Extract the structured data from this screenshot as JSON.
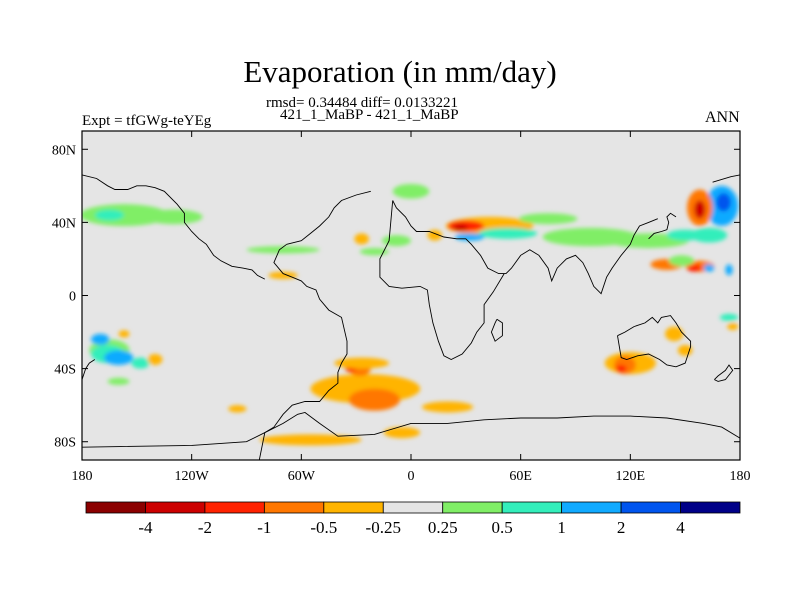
{
  "chart_data": {
    "type": "heatmap",
    "title": "Evaporation (in mm/day)",
    "stats_text": "rmsd= 0.34484 diff= 0.0133221",
    "runs_text": "421_1_MaBP - 421_1_MaBP",
    "left_label": "Expt = tfGWg-teYEg",
    "right_label": "ANN",
    "xlim": [
      -180,
      180
    ],
    "ylim": [
      -90,
      90
    ],
    "x_ticks": [
      {
        "value": -180,
        "label": "180"
      },
      {
        "value": -120,
        "label": "120W"
      },
      {
        "value": -60,
        "label": "60W"
      },
      {
        "value": 0,
        "label": "0"
      },
      {
        "value": 60,
        "label": "60E"
      },
      {
        "value": 120,
        "label": "120E"
      },
      {
        "value": 180,
        "label": "180"
      }
    ],
    "y_ticks": [
      {
        "value": 80,
        "label": "80N"
      },
      {
        "value": 40,
        "label": "40N"
      },
      {
        "value": 0,
        "label": "0"
      },
      {
        "value": -40,
        "label": "40S"
      },
      {
        "value": -80,
        "label": "80S"
      }
    ],
    "colorbar_levels": [
      "-4",
      "-2",
      "-1",
      "-0.5",
      "-0.25",
      "0.25",
      "0.5",
      "1",
      "2",
      "4"
    ],
    "colorbar_colors": [
      "#8b0000",
      "#cc0000",
      "#ff2200",
      "#ff7700",
      "#ffb400",
      "#e5e5e5",
      "#80ee66",
      "#33eebb",
      "#11aaff",
      "#0055ee",
      "#000088"
    ],
    "features": [
      {
        "cat": 6,
        "lon": -157,
        "lat": 44,
        "rlon": 24,
        "rlat": 6
      },
      {
        "cat": 6,
        "lon": -130,
        "lat": 43,
        "rlon": 16,
        "rlat": 4
      },
      {
        "cat": 7,
        "lon": -165,
        "lat": 44,
        "rlon": 8,
        "rlat": 3
      },
      {
        "cat": 6,
        "lon": 98,
        "lat": 32,
        "rlon": 26,
        "rlat": 5
      },
      {
        "cat": 6,
        "lon": 130,
        "lat": 30,
        "rlon": 22,
        "rlat": 4
      },
      {
        "cat": 7,
        "lon": 150,
        "lat": 33,
        "rlon": 10,
        "rlat": 3
      },
      {
        "cat": 8,
        "lon": 170,
        "lat": 49,
        "rlon": 9,
        "rlat": 11
      },
      {
        "cat": 9,
        "lon": 171,
        "lat": 51,
        "rlon": 4,
        "rlat": 5
      },
      {
        "cat": 3,
        "lon": 158,
        "lat": 48,
        "rlon": 7,
        "rlat": 10
      },
      {
        "cat": 1,
        "lon": 158,
        "lat": 47,
        "rlon": 3,
        "rlat": 5
      },
      {
        "cat": 7,
        "lon": 163,
        "lat": 33,
        "rlon": 10,
        "rlat": 4
      },
      {
        "cat": 3,
        "lon": 140,
        "lat": 17,
        "rlon": 9,
        "rlat": 3
      },
      {
        "cat": 3,
        "lon": 158,
        "lat": 16,
        "rlon": 8,
        "rlat": 3
      },
      {
        "cat": 2,
        "lon": 155,
        "lat": 15,
        "rlon": 4,
        "rlat": 2
      },
      {
        "cat": 8,
        "lon": 163,
        "lat": 15,
        "rlon": 3,
        "rlat": 2
      },
      {
        "cat": 6,
        "lon": 148,
        "lat": 19,
        "rlon": 7,
        "rlat": 3
      },
      {
        "cat": 8,
        "lon": 174,
        "lat": 14,
        "rlon": 2,
        "rlat": 3
      },
      {
        "cat": 4,
        "lon": 43,
        "lat": 38,
        "rlon": 24,
        "rlat": 5
      },
      {
        "cat": 2,
        "lon": 30,
        "lat": 38,
        "rlon": 10,
        "rlat": 3
      },
      {
        "cat": 1,
        "lon": 27,
        "lat": 37,
        "rlon": 4,
        "rlat": 2
      },
      {
        "cat": 7,
        "lon": 53,
        "lat": 34,
        "rlon": 16,
        "rlat": 3
      },
      {
        "cat": 6,
        "lon": 75,
        "lat": 42,
        "rlon": 16,
        "rlat": 3
      },
      {
        "cat": 8,
        "lon": 32,
        "lat": 32,
        "rlon": 8,
        "rlat": 2
      },
      {
        "cat": 4,
        "lon": 13,
        "lat": 33,
        "rlon": 4,
        "rlat": 3
      },
      {
        "cat": 4,
        "lon": -27,
        "lat": 31,
        "rlon": 4,
        "rlat": 3
      },
      {
        "cat": 6,
        "lon": -8,
        "lat": 30,
        "rlon": 8,
        "rlat": 3
      },
      {
        "cat": 6,
        "lon": 0,
        "lat": 57,
        "rlon": 10,
        "rlat": 4
      },
      {
        "cat": 6,
        "lon": -70,
        "lat": 25,
        "rlon": 20,
        "rlat": 2
      },
      {
        "cat": 4,
        "lon": -70,
        "lat": 11,
        "rlon": 8,
        "rlat": 2
      },
      {
        "cat": 6,
        "lon": -20,
        "lat": 24,
        "rlon": 8,
        "rlat": 2
      },
      {
        "cat": 6,
        "lon": -165,
        "lat": -30,
        "rlon": 11,
        "rlat": 6
      },
      {
        "cat": 7,
        "lon": -166,
        "lat": -32,
        "rlon": 9,
        "rlat": 5
      },
      {
        "cat": 8,
        "lon": -160,
        "lat": -34,
        "rlon": 8,
        "rlat": 4
      },
      {
        "cat": 8,
        "lon": -170,
        "lat": -24,
        "rlon": 5,
        "rlat": 3
      },
      {
        "cat": 7,
        "lon": -148,
        "lat": -37,
        "rlon": 5,
        "rlat": 3
      },
      {
        "cat": 4,
        "lon": -157,
        "lat": -21,
        "rlon": 3,
        "rlat": 2
      },
      {
        "cat": 4,
        "lon": -140,
        "lat": -35,
        "rlon": 4,
        "rlat": 3
      },
      {
        "cat": 6,
        "lon": -160,
        "lat": -47,
        "rlon": 6,
        "rlat": 2
      },
      {
        "cat": 4,
        "lon": -25,
        "lat": -51,
        "rlon": 30,
        "rlat": 8
      },
      {
        "cat": 3,
        "lon": -20,
        "lat": -57,
        "rlon": 14,
        "rlat": 6
      },
      {
        "cat": 3,
        "lon": -28,
        "lat": -40,
        "rlon": 6,
        "rlat": 4
      },
      {
        "cat": 2,
        "lon": -33,
        "lat": -40,
        "rlon": 3,
        "rlat": 2
      },
      {
        "cat": 4,
        "lon": -27,
        "lat": -37,
        "rlon": 15,
        "rlat": 3
      },
      {
        "cat": 4,
        "lon": -55,
        "lat": -79,
        "rlon": 28,
        "rlat": 3
      },
      {
        "cat": 4,
        "lon": -5,
        "lat": -75,
        "rlon": 10,
        "rlat": 3
      },
      {
        "cat": 4,
        "lon": 20,
        "lat": -61,
        "rlon": 14,
        "rlat": 3
      },
      {
        "cat": 4,
        "lon": -95,
        "lat": -62,
        "rlon": 5,
        "rlat": 2
      },
      {
        "cat": 4,
        "lon": 120,
        "lat": -37,
        "rlon": 14,
        "rlat": 6
      },
      {
        "cat": 3,
        "lon": 117,
        "lat": -38,
        "rlon": 6,
        "rlat": 5
      },
      {
        "cat": 2,
        "lon": 115,
        "lat": -40,
        "rlon": 3,
        "rlat": 2
      },
      {
        "cat": 4,
        "lon": 144,
        "lat": -21,
        "rlon": 5,
        "rlat": 4
      },
      {
        "cat": 4,
        "lon": 150,
        "lat": -30,
        "rlon": 4,
        "rlat": 3
      },
      {
        "cat": 7,
        "lon": 174,
        "lat": -12,
        "rlon": 5,
        "rlat": 2
      },
      {
        "cat": 4,
        "lon": 176,
        "lat": -17,
        "rlon": 3,
        "rlat": 2
      }
    ],
    "coastlines": [
      [
        [
          -83,
          -90
        ],
        [
          -80,
          -75
        ],
        [
          -75,
          -72
        ],
        [
          -70,
          -65
        ],
        [
          -65,
          -60
        ],
        [
          -58,
          -58
        ],
        [
          -50,
          -58
        ],
        [
          -45,
          -52
        ],
        [
          -40,
          -48
        ],
        [
          -40,
          -42
        ],
        [
          -38,
          -37
        ],
        [
          -35,
          -32
        ],
        [
          -35,
          -25
        ],
        [
          -38,
          -12
        ],
        [
          -45,
          -8
        ],
        [
          -50,
          -2
        ],
        [
          -52,
          3
        ],
        [
          -57,
          5
        ],
        [
          -60,
          8
        ],
        [
          -65,
          10
        ],
        [
          -70,
          12
        ],
        [
          -75,
          18
        ],
        [
          -72,
          25
        ],
        [
          -68,
          28
        ]
      ],
      [
        [
          -68,
          28
        ],
        [
          -60,
          30
        ],
        [
          -55,
          34
        ],
        [
          -50,
          38
        ],
        [
          -45,
          43
        ],
        [
          -42,
          48
        ],
        [
          -38,
          52
        ],
        [
          -30,
          55
        ],
        [
          -22,
          57
        ]
      ],
      [
        [
          -10,
          52
        ],
        [
          -8,
          48
        ],
        [
          -3,
          43
        ],
        [
          0,
          38
        ],
        [
          3,
          35
        ],
        [
          10,
          35
        ],
        [
          18,
          32
        ],
        [
          25,
          31
        ],
        [
          30,
          31
        ],
        [
          33,
          28
        ],
        [
          38,
          22
        ],
        [
          42,
          15
        ],
        [
          48,
          12
        ],
        [
          52,
          12
        ],
        [
          55,
          15
        ],
        [
          60,
          22
        ],
        [
          65,
          25
        ],
        [
          70,
          22
        ],
        [
          75,
          15
        ],
        [
          77,
          8
        ],
        [
          80,
          15
        ],
        [
          85,
          20
        ],
        [
          90,
          22
        ],
        [
          94,
          18
        ],
        [
          97,
          12
        ],
        [
          100,
          5
        ],
        [
          104,
          1
        ],
        [
          107,
          10
        ],
        [
          110,
          15
        ],
        [
          115,
          22
        ],
        [
          120,
          28
        ],
        [
          122,
          33
        ],
        [
          125,
          38
        ],
        [
          130,
          40
        ],
        [
          135,
          42
        ]
      ],
      [
        [
          -10,
          52
        ],
        [
          -12,
          30
        ],
        [
          -17,
          20
        ],
        [
          -17,
          10
        ],
        [
          -12,
          5
        ],
        [
          -5,
          4
        ],
        [
          5,
          5
        ],
        [
          9,
          3
        ],
        [
          10,
          -5
        ],
        [
          12,
          -15
        ],
        [
          15,
          -25
        ],
        [
          18,
          -33
        ],
        [
          22,
          -35
        ],
        [
          28,
          -32
        ],
        [
          33,
          -26
        ],
        [
          36,
          -20
        ],
        [
          40,
          -15
        ],
        [
          40,
          -5
        ],
        [
          45,
          2
        ],
        [
          51,
          12
        ]
      ],
      [
        [
          47,
          -13
        ],
        [
          50,
          -15
        ],
        [
          50,
          -22
        ],
        [
          46,
          -25
        ],
        [
          44,
          -20
        ],
        [
          46,
          -15
        ],
        [
          47,
          -13
        ]
      ],
      [
        [
          113,
          -22
        ],
        [
          115,
          -34
        ],
        [
          118,
          -35
        ],
        [
          124,
          -33
        ],
        [
          130,
          -32
        ],
        [
          136,
          -35
        ],
        [
          140,
          -38
        ],
        [
          145,
          -39
        ],
        [
          150,
          -37
        ],
        [
          153,
          -28
        ],
        [
          153,
          -25
        ],
        [
          148,
          -20
        ],
        [
          145,
          -15
        ],
        [
          142,
          -11
        ],
        [
          137,
          -12
        ],
        [
          135,
          -15
        ],
        [
          132,
          -12
        ],
        [
          128,
          -15
        ],
        [
          122,
          -17
        ],
        [
          117,
          -20
        ],
        [
          113,
          -22
        ]
      ],
      [
        [
          130,
          31
        ],
        [
          133,
          34
        ],
        [
          137,
          35
        ],
        [
          140,
          36
        ],
        [
          141,
          40
        ],
        [
          140,
          43
        ],
        [
          142,
          45
        ],
        [
          145,
          43
        ]
      ],
      [
        [
          -180,
          -46
        ],
        [
          -178,
          -40
        ],
        [
          -176,
          -37
        ],
        [
          -173,
          -35
        ]
      ],
      [
        [
          166,
          -46
        ],
        [
          168,
          -44
        ],
        [
          172,
          -41
        ],
        [
          174,
          -38
        ],
        [
          176,
          -41
        ],
        [
          172,
          -46
        ],
        [
          168,
          -47
        ],
        [
          166,
          -46
        ]
      ],
      [
        [
          -180,
          -83
        ],
        [
          -120,
          -82
        ],
        [
          -90,
          -80
        ],
        [
          -78,
          -74
        ],
        [
          -70,
          -70
        ],
        [
          -62,
          -65
        ],
        [
          -58,
          -64
        ],
        [
          -50,
          -70
        ],
        [
          -40,
          -77
        ],
        [
          -20,
          -76
        ],
        [
          0,
          -70
        ],
        [
          20,
          -70
        ],
        [
          40,
          -68
        ],
        [
          60,
          -67
        ],
        [
          80,
          -67
        ],
        [
          100,
          -66
        ],
        [
          120,
          -66
        ],
        [
          140,
          -67
        ],
        [
          160,
          -70
        ],
        [
          170,
          -72
        ],
        [
          180,
          -78
        ]
      ],
      [
        [
          165,
          62
        ],
        [
          175,
          65
        ],
        [
          180,
          66
        ]
      ],
      [
        [
          -180,
          66
        ],
        [
          -172,
          64
        ],
        [
          -166,
          60
        ],
        [
          -162,
          58
        ],
        [
          -155,
          58
        ],
        [
          -150,
          60
        ],
        [
          -145,
          60
        ],
        [
          -140,
          59
        ],
        [
          -135,
          57
        ],
        [
          -128,
          50
        ],
        [
          -124,
          45
        ],
        [
          -124,
          40
        ],
        [
          -120,
          35
        ],
        [
          -116,
          31
        ],
        [
          -112,
          28
        ],
        [
          -108,
          22
        ],
        [
          -104,
          19
        ],
        [
          -98,
          16
        ],
        [
          -92,
          15
        ],
        [
          -87,
          14
        ],
        [
          -84,
          11
        ],
        [
          -80,
          9
        ]
      ]
    ]
  }
}
